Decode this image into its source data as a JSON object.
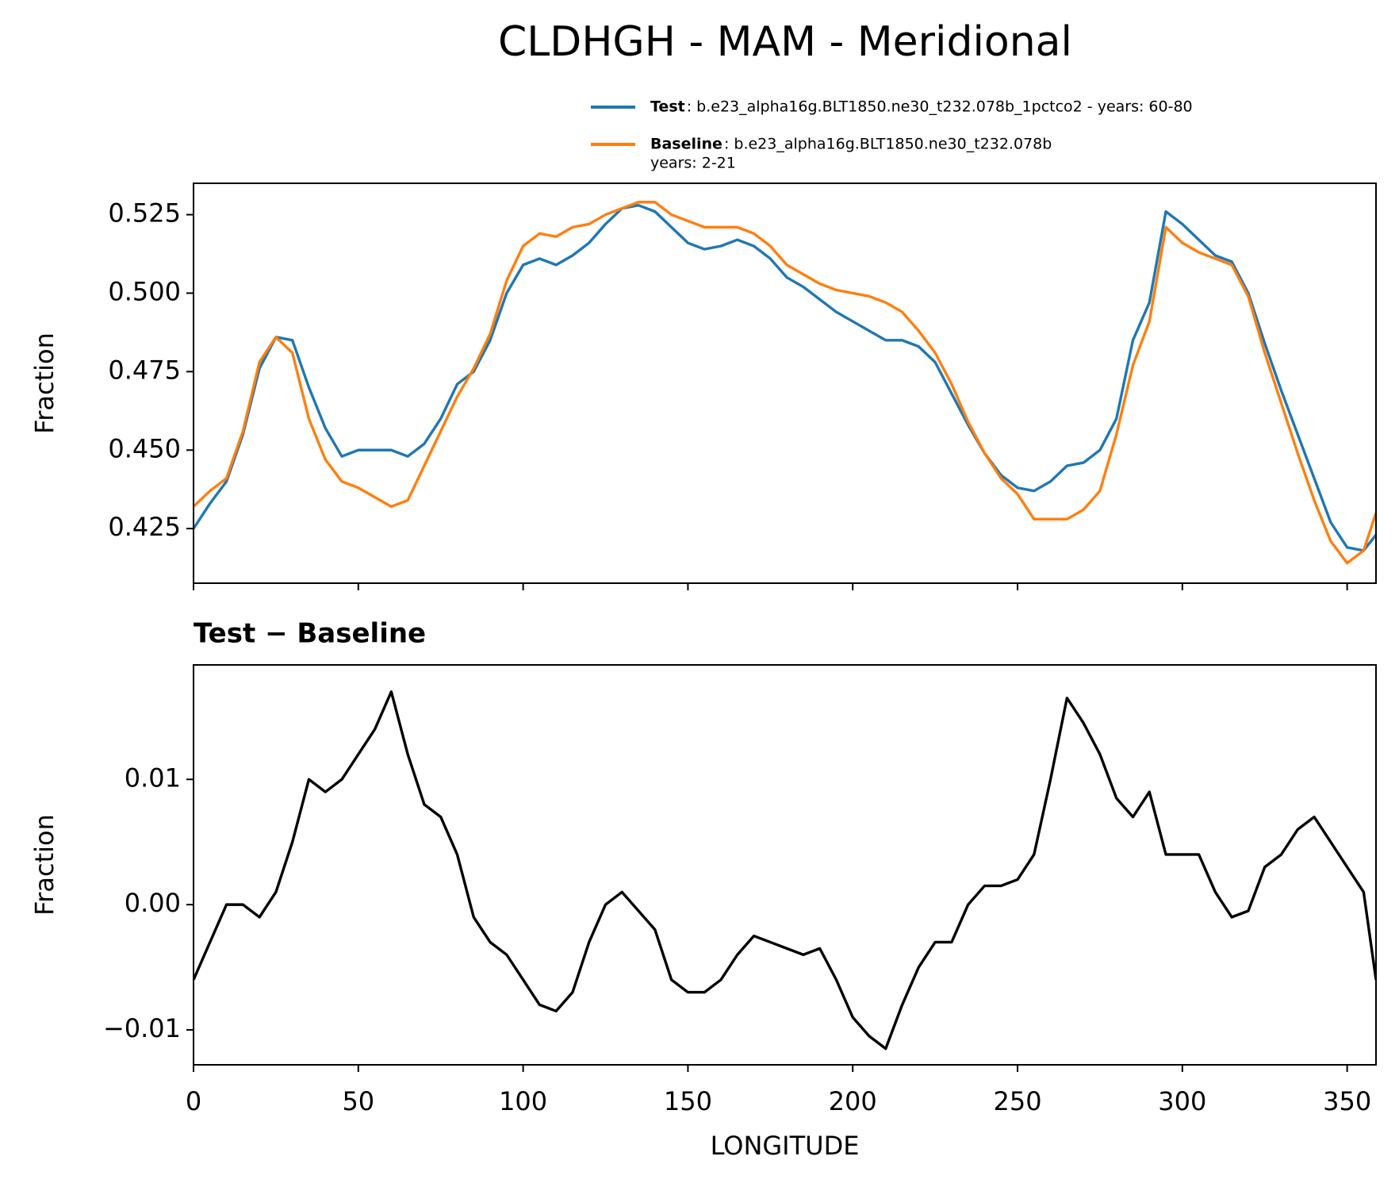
{
  "chart_data": [
    {
      "type": "line",
      "title": "CLDHGH - MAM - Meridional",
      "ylabel": "Fraction",
      "x": [
        0,
        5,
        10,
        15,
        20,
        25,
        30,
        35,
        40,
        45,
        50,
        55,
        60,
        65,
        70,
        75,
        80,
        85,
        90,
        95,
        100,
        105,
        110,
        115,
        120,
        125,
        130,
        135,
        140,
        145,
        150,
        155,
        160,
        165,
        170,
        175,
        180,
        185,
        190,
        195,
        200,
        205,
        210,
        215,
        220,
        225,
        230,
        235,
        240,
        245,
        250,
        255,
        260,
        265,
        270,
        275,
        280,
        285,
        290,
        295,
        300,
        305,
        310,
        315,
        320,
        325,
        330,
        335,
        340,
        345,
        350,
        355,
        358.75
      ],
      "series": [
        {
          "name": "Test",
          "description": [
            ": b.e23_alpha16g.BLT1850.ne30_t232.078b_1pctco2 - years: 60-80"
          ],
          "color": "#1f77b4",
          "values": [
            0.425,
            0.433,
            0.44,
            0.455,
            0.476,
            0.486,
            0.485,
            0.47,
            0.457,
            0.448,
            0.45,
            0.45,
            0.45,
            0.448,
            0.452,
            0.46,
            0.471,
            0.475,
            0.485,
            0.5,
            0.509,
            0.511,
            0.509,
            0.512,
            0.516,
            0.522,
            0.527,
            0.528,
            0.526,
            0.521,
            0.516,
            0.514,
            0.515,
            0.517,
            0.515,
            0.511,
            0.505,
            0.502,
            0.498,
            0.494,
            0.491,
            0.488,
            0.485,
            0.485,
            0.483,
            0.478,
            0.468,
            0.458,
            0.449,
            0.442,
            0.438,
            0.437,
            0.44,
            0.445,
            0.446,
            0.45,
            0.46,
            0.485,
            0.497,
            0.526,
            0.522,
            0.517,
            0.512,
            0.51,
            0.5,
            0.484,
            0.469,
            0.455,
            0.441,
            0.427,
            0.419,
            0.418,
            0.423
          ]
        },
        {
          "name": "Baseline",
          "description": [
            ": b.e23_alpha16g.BLT1850.ne30_t232.078b",
            "years: 2-21"
          ],
          "color": "#ff7f0e",
          "values": [
            0.432,
            0.437,
            0.441,
            0.456,
            0.478,
            0.486,
            0.481,
            0.46,
            0.447,
            0.44,
            0.438,
            0.435,
            0.432,
            0.434,
            0.445,
            0.456,
            0.467,
            0.476,
            0.487,
            0.504,
            0.515,
            0.519,
            0.518,
            0.521,
            0.522,
            0.525,
            0.527,
            0.529,
            0.529,
            0.525,
            0.523,
            0.521,
            0.521,
            0.521,
            0.519,
            0.515,
            0.509,
            0.506,
            0.503,
            0.501,
            0.5,
            0.499,
            0.497,
            0.494,
            0.488,
            0.481,
            0.471,
            0.459,
            0.449,
            0.441,
            0.436,
            0.428,
            0.428,
            0.428,
            0.431,
            0.437,
            0.455,
            0.477,
            0.491,
            0.521,
            0.516,
            0.513,
            0.511,
            0.509,
            0.499,
            0.481,
            0.465,
            0.449,
            0.434,
            0.421,
            0.414,
            0.418,
            0.43
          ]
        }
      ],
      "xlim": [
        0,
        358.75
      ],
      "xticks": [
        0,
        50,
        100,
        150,
        200,
        250,
        300,
        350
      ],
      "show_xtick_labels": false,
      "ylim": [
        0.4076,
        0.535
      ],
      "yticks": [
        0.425,
        {
          "value": 0.45,
          "label": "0.450"
        },
        0.475,
        {
          "value": 0.5,
          "label": "0.500"
        },
        0.525
      ]
    },
    {
      "type": "line",
      "subtitle": "Test − Baseline",
      "ylabel": "Fraction",
      "xlabel": "LONGITUDE",
      "x": [
        0,
        5,
        10,
        15,
        20,
        25,
        30,
        35,
        40,
        45,
        50,
        55,
        60,
        65,
        70,
        75,
        80,
        85,
        90,
        95,
        100,
        105,
        110,
        115,
        120,
        125,
        130,
        135,
        140,
        145,
        150,
        155,
        160,
        165,
        170,
        175,
        180,
        185,
        190,
        195,
        200,
        205,
        210,
        215,
        220,
        225,
        230,
        235,
        240,
        245,
        250,
        255,
        260,
        265,
        270,
        275,
        280,
        285,
        290,
        295,
        300,
        305,
        310,
        315,
        320,
        325,
        330,
        335,
        340,
        345,
        350,
        355,
        358.75
      ],
      "series": [
        {
          "color": "#000000",
          "values": [
            -0.006,
            -0.003,
            0.0,
            0.0,
            -0.001,
            0.001,
            0.005,
            0.01,
            0.009,
            0.01,
            0.012,
            0.014,
            0.017,
            0.012,
            0.008,
            0.007,
            0.004,
            -0.001,
            -0.003,
            -0.004,
            -0.006,
            -0.008,
            -0.0085,
            -0.007,
            -0.003,
            0.0,
            0.001,
            -0.0005,
            -0.002,
            -0.006,
            -0.007,
            -0.007,
            -0.006,
            -0.004,
            -0.0025,
            -0.003,
            -0.0035,
            -0.004,
            -0.0035,
            -0.006,
            -0.009,
            -0.0105,
            -0.0115,
            -0.008,
            -0.005,
            -0.003,
            -0.003,
            0.0,
            0.0015,
            0.0015,
            0.002,
            0.004,
            0.01,
            0.0165,
            0.0145,
            0.012,
            0.0085,
            0.007,
            0.009,
            0.004,
            0.004,
            0.004,
            0.001,
            -0.001,
            -0.0005,
            0.003,
            0.004,
            0.006,
            0.007,
            0.005,
            0.003,
            0.001,
            -0.006
          ]
        }
      ],
      "xlim": [
        0,
        358.75
      ],
      "xticks": [
        0,
        50,
        100,
        150,
        200,
        250,
        300,
        350
      ],
      "show_xtick_labels": true,
      "ylim": [
        -0.01279,
        0.01914
      ],
      "yticks": [
        {
          "value": -0.01,
          "label": "−0.01"
        },
        {
          "value": 0,
          "label": "0.00"
        },
        0.01
      ]
    }
  ]
}
